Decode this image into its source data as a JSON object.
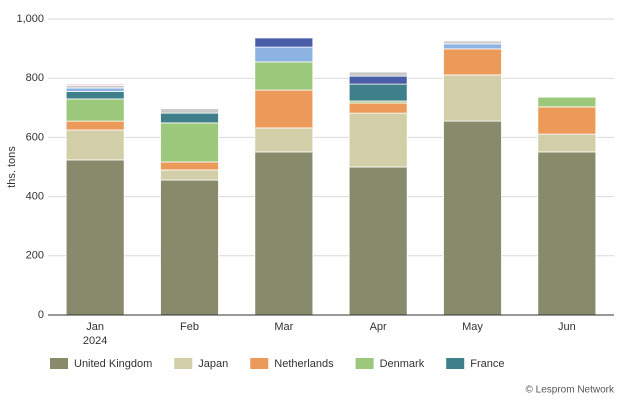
{
  "chart_data": {
    "type": "stacked_bar",
    "y_label": "ths. tons",
    "credit": "© Lesprom Network",
    "categories": [
      "Jan 2024",
      "Feb",
      "Mar",
      "Apr",
      "May",
      "Jun"
    ],
    "series": [
      {
        "name": "United Kingdom",
        "color": "#878b6c",
        "values": [
          524,
          456,
          551,
          500,
          655,
          551
        ]
      },
      {
        "name": "Japan",
        "color": "#d2cfa8",
        "values": [
          101,
          34,
          81,
          182,
          156,
          60
        ]
      },
      {
        "name": "Netherlands",
        "color": "#ec9a5a",
        "values": [
          30,
          27,
          128,
          34,
          88,
          92
        ]
      },
      {
        "name": "Denmark",
        "color": "#9bc87a",
        "values": [
          75,
          132,
          95,
          7,
          0,
          33
        ]
      },
      {
        "name": "France",
        "color": "#3f7f8a",
        "values": [
          25,
          33,
          0,
          57,
          0,
          2
        ]
      },
      {
        "color": "#8db3e2",
        "values": [
          12,
          0,
          50,
          0,
          17,
          0
        ]
      },
      {
        "color": "#4a5ea8",
        "values": [
          0,
          0,
          31,
          27,
          0,
          0
        ]
      },
      {
        "color": "#c8c8c8",
        "values": [
          8,
          15,
          0,
          14,
          10,
          0
        ]
      },
      {
        "color": "#e6b8c8",
        "values": [
          5,
          0,
          0,
          0,
          3,
          0
        ]
      }
    ],
    "ylim": [
      0,
      1000
    ],
    "yticks": [
      0,
      200,
      400,
      600,
      800,
      {
        "value": 1000,
        "label": "1,000"
      }
    ],
    "grid": true
  }
}
